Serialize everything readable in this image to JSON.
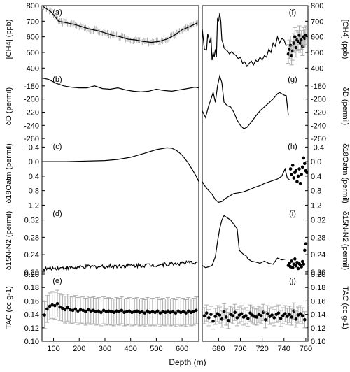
{
  "figure": {
    "xlabel": "Depth (m)",
    "left_xticks": [
      100,
      200,
      300,
      400,
      500,
      600
    ],
    "right_xticks": [
      680,
      700,
      720,
      740,
      760
    ],
    "colors": {
      "line": "#000000",
      "error_bars": "#aaaaaa",
      "points": "#000000",
      "background": "#ffffff"
    }
  },
  "chart_data": [
    {
      "type": "line",
      "panel": "a",
      "side": "left",
      "ylabel": "[CH4] (ppb)",
      "xlim": [
        55,
        665
      ],
      "ylim": [
        370,
        800
      ],
      "yticks": [
        400,
        500,
        600,
        700,
        800
      ],
      "series": [
        {
          "style": "line-with-grey-error-band",
          "x": [
            55,
            90,
            120,
            150,
            180,
            210,
            240,
            270,
            300,
            330,
            360,
            390,
            420,
            450,
            480,
            510,
            540,
            570,
            600,
            630,
            660
          ],
          "y": [
            800,
            760,
            700,
            690,
            680,
            665,
            650,
            640,
            625,
            610,
            600,
            585,
            580,
            570,
            565,
            570,
            585,
            610,
            645,
            665,
            690
          ]
        }
      ]
    },
    {
      "type": "line",
      "panel": "b",
      "side": "left",
      "ylabel": "δD (permil)",
      "xlim": [
        55,
        665
      ],
      "ylim": [
        -262,
        -160
      ],
      "yticks": [
        -180,
        -200,
        -220,
        -240,
        -260
      ],
      "series": [
        {
          "style": "line",
          "x": [
            55,
            80,
            110,
            140,
            170,
            200,
            230,
            260,
            290,
            320,
            350,
            380,
            410,
            440,
            470,
            500,
            530,
            560,
            590,
            620,
            650,
            665
          ],
          "y": [
            -168,
            -170,
            -176,
            -180,
            -182,
            -183,
            -183,
            -180,
            -184,
            -185,
            -183,
            -186,
            -188,
            -189,
            -188,
            -185,
            -187,
            -188,
            -186,
            -184,
            -182,
            -183
          ]
        }
      ]
    },
    {
      "type": "line",
      "panel": "c",
      "side": "left",
      "ylabel": "δ18Oatm (permil)",
      "xlim": [
        55,
        665
      ],
      "ylim": [
        1.25,
        -0.6
      ],
      "yticks": [
        -0.4,
        0.0,
        0.4,
        0.8,
        1.2
      ],
      "series": [
        {
          "style": "line",
          "x": [
            60,
            150,
            250,
            300,
            350,
            400,
            450,
            500,
            540,
            560,
            580,
            600,
            620,
            640,
            655,
            665
          ],
          "y": [
            0.0,
            0.0,
            -0.02,
            -0.03,
            -0.06,
            -0.12,
            -0.22,
            -0.33,
            -0.38,
            -0.37,
            -0.3,
            -0.18,
            0.0,
            0.22,
            0.4,
            0.55
          ]
        }
      ]
    },
    {
      "type": "line",
      "panel": "d",
      "side": "left",
      "ylabel": "δ15N-N2 (permil)",
      "xlim": [
        55,
        665
      ],
      "ylim": [
        0.195,
        0.35
      ],
      "yticks": [
        0.2,
        0.24,
        0.28,
        0.32
      ],
      "series": [
        {
          "style": "noisy-line",
          "x": [
            60,
            120,
            180,
            240,
            300,
            360,
            420,
            480,
            540,
            600,
            660
          ],
          "y": [
            0.207,
            0.209,
            0.21,
            0.212,
            0.213,
            0.214,
            0.215,
            0.216,
            0.218,
            0.22,
            0.222
          ]
        }
      ]
    },
    {
      "type": "scatter",
      "panel": "e",
      "side": "left",
      "ylabel": "TAC (cc g-1)",
      "xlim": [
        55,
        665
      ],
      "ylim": [
        0.1,
        0.2
      ],
      "yticks": [
        0.1,
        0.12,
        0.14,
        0.16,
        0.18,
        0.2
      ],
      "series": [
        {
          "style": "points-with-grey-error-bars",
          "x": [
            65,
            75,
            85,
            95,
            105,
            115,
            125,
            135,
            145,
            155,
            165,
            175,
            185,
            195,
            205,
            215,
            225,
            235,
            245,
            255,
            265,
            275,
            285,
            295,
            305,
            315,
            325,
            335,
            345,
            355,
            365,
            375,
            385,
            395,
            405,
            415,
            425,
            435,
            445,
            455,
            465,
            475,
            485,
            495,
            505,
            515,
            525,
            535,
            545,
            555,
            565,
            575,
            585,
            595,
            605,
            615,
            625,
            635,
            645,
            655
          ],
          "y": [
            0.139,
            0.148,
            0.152,
            0.154,
            0.153,
            0.156,
            0.151,
            0.149,
            0.147,
            0.15,
            0.147,
            0.146,
            0.148,
            0.145,
            0.147,
            0.146,
            0.144,
            0.147,
            0.145,
            0.146,
            0.144,
            0.145,
            0.143,
            0.146,
            0.144,
            0.145,
            0.144,
            0.143,
            0.145,
            0.144,
            0.146,
            0.143,
            0.144,
            0.145,
            0.143,
            0.144,
            0.145,
            0.143,
            0.144,
            0.142,
            0.145,
            0.143,
            0.144,
            0.143,
            0.145,
            0.142,
            0.144,
            0.143,
            0.145,
            0.143,
            0.144,
            0.142,
            0.145,
            0.143,
            0.144,
            0.142,
            0.145,
            0.143,
            0.144,
            0.146
          ],
          "error": 0.02
        }
      ]
    },
    {
      "type": "line",
      "panel": "f",
      "side": "right",
      "ylabel": "[CH4] (ppb)",
      "xlim": [
        665,
        762
      ],
      "ylim": [
        370,
        800
      ],
      "yticks": [
        400,
        500,
        600,
        700,
        800
      ],
      "series": [
        {
          "style": "line",
          "x": [
            665,
            667,
            669,
            670,
            672,
            673,
            674,
            675,
            676,
            677,
            678,
            679,
            680,
            681,
            682,
            683,
            684,
            685,
            686,
            688,
            690,
            692,
            694,
            696,
            698,
            700,
            702,
            704,
            706,
            708,
            710,
            712,
            714,
            716,
            718,
            720,
            722,
            724,
            726,
            728,
            730,
            732,
            734,
            736,
            738,
            740,
            742
          ],
          "y": [
            650,
            520,
            515,
            620,
            560,
            600,
            450,
            500,
            470,
            520,
            470,
            720,
            700,
            750,
            700,
            580,
            560,
            530,
            520,
            510,
            490,
            505,
            490,
            480,
            460,
            470,
            430,
            440,
            410,
            430,
            445,
            420,
            450,
            440,
            470,
            450,
            480,
            470,
            520,
            500,
            560,
            540,
            600,
            560,
            590,
            580,
            540
          ]
        },
        {
          "style": "points-with-grey-error-bars",
          "x": [
            744,
            745,
            746,
            747,
            748,
            749,
            750,
            751,
            752,
            753,
            754,
            755,
            756,
            757,
            758,
            759,
            760
          ],
          "y": [
            490,
            520,
            545,
            480,
            510,
            560,
            600,
            530,
            580,
            570,
            610,
            560,
            580,
            540,
            600,
            590,
            610
          ],
          "error": 60
        }
      ]
    },
    {
      "type": "line",
      "panel": "g",
      "side": "right",
      "ylabel": "δD (permil)",
      "xlim": [
        665,
        762
      ],
      "ylim": [
        -262,
        -160
      ],
      "yticks": [
        -180,
        -200,
        -220,
        -240,
        -260
      ],
      "series": [
        {
          "style": "line",
          "x": [
            665,
            668,
            671,
            673,
            675,
            677,
            679,
            681,
            683,
            685,
            688,
            691,
            694,
            697,
            700,
            703,
            706,
            710,
            714,
            718,
            722,
            726,
            730,
            734,
            736,
            738,
            740,
            742,
            744
          ],
          "y": [
            -218,
            -228,
            -210,
            -200,
            -190,
            -205,
            -180,
            -165,
            -175,
            -205,
            -210,
            -212,
            -220,
            -232,
            -240,
            -245,
            -243,
            -235,
            -226,
            -218,
            -212,
            -206,
            -200,
            -192,
            -190,
            -192,
            -194,
            -195,
            -225
          ]
        }
      ]
    },
    {
      "type": "line",
      "panel": "h",
      "side": "right",
      "ylabel": "δ18Oatm (permil)",
      "xlim": [
        665,
        762
      ],
      "ylim": [
        1.25,
        -0.6
      ],
      "yticks": [
        -0.4,
        0.0,
        0.4,
        0.8,
        1.2
      ],
      "series": [
        {
          "style": "line",
          "x": [
            665,
            668,
            671,
            674,
            677,
            680,
            683,
            686,
            690,
            694,
            698,
            702,
            706,
            710,
            714,
            718,
            722,
            726,
            730,
            734,
            738,
            741,
            743,
            745
          ],
          "y": [
            0.55,
            0.7,
            0.8,
            0.9,
            1.05,
            1.12,
            1.1,
            1.02,
            0.95,
            0.88,
            0.86,
            0.84,
            0.8,
            0.75,
            0.7,
            0.66,
            0.6,
            0.56,
            0.52,
            0.48,
            0.4,
            0.2,
            0.45,
            0.5
          ]
        },
        {
          "style": "points",
          "x": [
            746,
            747,
            748,
            749,
            750,
            751,
            752,
            753,
            754,
            755,
            756,
            757,
            758,
            759,
            760,
            761
          ],
          "y": [
            0.2,
            0.35,
            0.1,
            0.45,
            0.3,
            0.25,
            0.55,
            0.4,
            0.2,
            0.6,
            0.35,
            0.15,
            -0.1,
            0.05,
            0.25,
            0.3
          ]
        }
      ]
    },
    {
      "type": "line",
      "panel": "i",
      "side": "right",
      "ylabel": "δ15N-N2 (permil)",
      "xlim": [
        665,
        762
      ],
      "ylim": [
        0.195,
        0.35
      ],
      "yticks": [
        0.2,
        0.24,
        0.28,
        0.32
      ],
      "series": [
        {
          "style": "line",
          "x": [
            665,
            668,
            671,
            674,
            677,
            679,
            681,
            683,
            685,
            688,
            691,
            694,
            697,
            699,
            701,
            703,
            705,
            707,
            710,
            714,
            718,
            722,
            726,
            730,
            734,
            738,
            742
          ],
          "y": [
            0.215,
            0.21,
            0.212,
            0.215,
            0.235,
            0.27,
            0.3,
            0.32,
            0.33,
            0.325,
            0.32,
            0.31,
            0.3,
            0.25,
            0.245,
            0.24,
            0.238,
            0.23,
            0.225,
            0.223,
            0.22,
            0.225,
            0.22,
            0.218,
            0.232,
            0.228,
            0.23
          ]
        },
        {
          "style": "points",
          "x": [
            744,
            745,
            746,
            747,
            748,
            749,
            750,
            751,
            752,
            753,
            754,
            755,
            756,
            757,
            758,
            759,
            760
          ],
          "y": [
            0.215,
            0.22,
            0.212,
            0.225,
            0.21,
            0.218,
            0.23,
            0.214,
            0.222,
            0.208,
            0.219,
            0.216,
            0.212,
            0.224,
            0.218,
            0.25,
            0.265
          ]
        }
      ]
    },
    {
      "type": "scatter",
      "panel": "j",
      "side": "right",
      "ylabel": "TAC (cc g-1)",
      "xlim": [
        665,
        762
      ],
      "ylim": [
        0.1,
        0.2
      ],
      "yticks": [
        0.1,
        0.12,
        0.14,
        0.16,
        0.18,
        0.2
      ],
      "series": [
        {
          "style": "points-with-grey-error-bars",
          "x": [
            667,
            669,
            671,
            673,
            675,
            677,
            679,
            681,
            683,
            685,
            687,
            689,
            691,
            693,
            695,
            697,
            699,
            701,
            703,
            705,
            707,
            709,
            711,
            713,
            715,
            717,
            719,
            721,
            723,
            725,
            727,
            729,
            731,
            733,
            735,
            737,
            739,
            741,
            743,
            745,
            747,
            749,
            751,
            753,
            755,
            757,
            759
          ],
          "y": [
            0.138,
            0.142,
            0.135,
            0.14,
            0.13,
            0.137,
            0.141,
            0.139,
            0.133,
            0.144,
            0.136,
            0.131,
            0.14,
            0.138,
            0.143,
            0.135,
            0.139,
            0.141,
            0.136,
            0.138,
            0.134,
            0.142,
            0.139,
            0.137,
            0.136,
            0.14,
            0.138,
            0.143,
            0.132,
            0.141,
            0.137,
            0.139,
            0.135,
            0.14,
            0.142,
            0.134,
            0.138,
            0.141,
            0.137,
            0.14,
            0.136,
            0.145,
            0.133,
            0.139,
            0.141,
            0.138,
            0.132
          ],
          "error": 0.012
        }
      ]
    }
  ]
}
